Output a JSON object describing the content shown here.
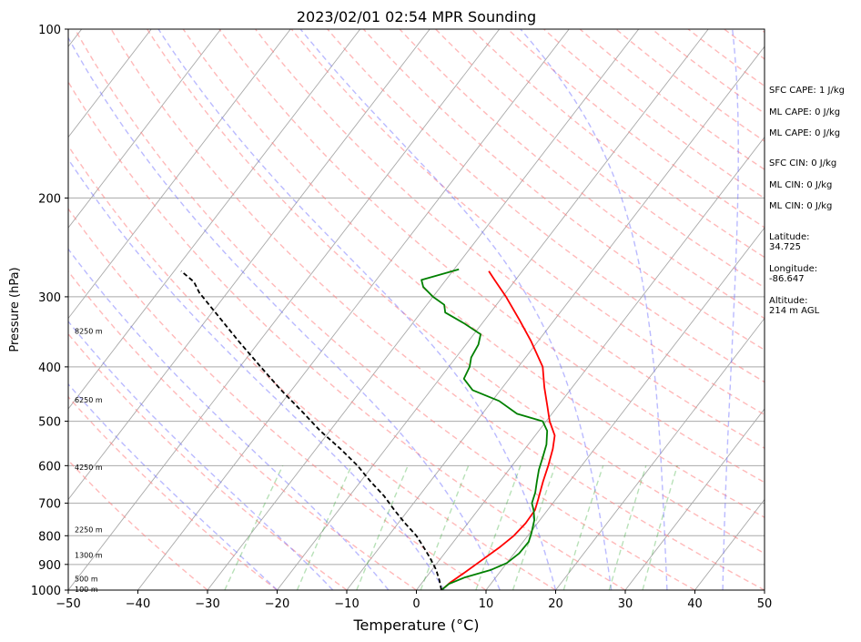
{
  "chart_data": {
    "type": "line",
    "subtype": "skew-t log-p",
    "title": "2023/02/01 02:54 MPR Sounding",
    "xlabel": "Temperature (°C)",
    "ylabel": "Pressure (hPa)",
    "xlim": [
      -50,
      50
    ],
    "ylim": [
      1000,
      100
    ],
    "y_scale": "log",
    "grid": true,
    "x_ticks": [
      "−50",
      "−40",
      "−30",
      "−20",
      "−10",
      "0",
      "10",
      "20",
      "30",
      "40",
      "50"
    ],
    "y_ticks": [
      "100",
      "200",
      "300",
      "400",
      "500",
      "600",
      "700",
      "800",
      "900",
      "1000"
    ],
    "series": [
      {
        "color": "#ff0000",
        "style": "solid",
        "points": [
          [
            3.6,
            1000
          ],
          [
            4,
            970
          ],
          [
            5,
            930
          ],
          [
            6.2,
            880
          ],
          [
            7.2,
            840
          ],
          [
            8,
            800
          ],
          [
            8.3,
            760
          ],
          [
            8.2,
            720
          ],
          [
            7.5,
            690
          ],
          [
            6.2,
            640
          ],
          [
            5.2,
            600
          ],
          [
            4,
            560
          ],
          [
            2.8,
            530
          ],
          [
            0.5,
            500
          ],
          [
            -1.5,
            470
          ],
          [
            -4,
            435
          ],
          [
            -6.5,
            400
          ],
          [
            -11,
            360
          ],
          [
            -15,
            330
          ],
          [
            -19.5,
            300
          ],
          [
            -23,
            280
          ],
          [
            -24.8,
            270
          ]
        ]
      },
      {
        "color": "#008000",
        "style": "solid",
        "points": [
          [
            3.6,
            1000
          ],
          [
            4,
            975
          ],
          [
            5.5,
            950
          ],
          [
            8.5,
            920
          ],
          [
            10,
            895
          ],
          [
            10.7,
            860
          ],
          [
            10.8,
            820
          ],
          [
            10.2,
            790
          ],
          [
            9.2,
            750
          ],
          [
            8,
            720
          ],
          [
            7,
            700
          ],
          [
            6.3,
            670
          ],
          [
            5.3,
            640
          ],
          [
            4.3,
            610
          ],
          [
            3.5,
            580
          ],
          [
            2.6,
            550
          ],
          [
            1.2,
            520
          ],
          [
            -0.5,
            500
          ],
          [
            -5,
            485
          ],
          [
            -9,
            460
          ],
          [
            -14,
            440
          ],
          [
            -16.5,
            420
          ],
          [
            -17,
            400
          ],
          [
            -17.8,
            385
          ],
          [
            -18.2,
            365
          ],
          [
            -19,
            350
          ],
          [
            -22.5,
            335
          ],
          [
            -26.5,
            320
          ],
          [
            -27.5,
            310
          ],
          [
            -30,
            300
          ],
          [
            -32.5,
            288
          ],
          [
            -33.5,
            280
          ],
          [
            -29.3,
            268
          ]
        ]
      },
      {
        "color": "#000000",
        "style": "dashed",
        "points": [
          [
            3.6,
            1000
          ],
          [
            2.2,
            960
          ],
          [
            0.6,
            920
          ],
          [
            -1.4,
            880
          ],
          [
            -3.6,
            840
          ],
          [
            -6,
            800
          ],
          [
            -9,
            760
          ],
          [
            -12,
            720
          ],
          [
            -15,
            680
          ],
          [
            -18.6,
            640
          ],
          [
            -22.2,
            600
          ],
          [
            -26.5,
            560
          ],
          [
            -31.4,
            520
          ],
          [
            -36.2,
            480
          ],
          [
            -41.5,
            440
          ],
          [
            -47,
            400
          ],
          [
            -53,
            360
          ],
          [
            -59.5,
            320
          ],
          [
            -64,
            295
          ],
          [
            -66,
            282
          ],
          [
            -69,
            270
          ]
        ]
      }
    ],
    "height_labels": [
      "100 m",
      "500 m",
      "1300 m",
      "2250 m",
      "4250 m",
      "6250 m",
      "8250 m"
    ]
  },
  "annotations": {
    "sfc_cape": "SFC CAPE: 1 J/kg",
    "ml_cape_1": "ML CAPE: 0 J/kg",
    "ml_cape_2": "ML CAPE: 0 J/kg",
    "sfc_cin": "SFC CIN: 0 J/kg",
    "ml_cin_1": "ML CIN: 0 J/kg",
    "ml_cin_2": "ML CIN: 0 J/kg",
    "latitude": "Latitude:\n34.725",
    "longitude": "Longitude:\n-86.647",
    "altitude": "Altitude:\n214 m AGL"
  }
}
